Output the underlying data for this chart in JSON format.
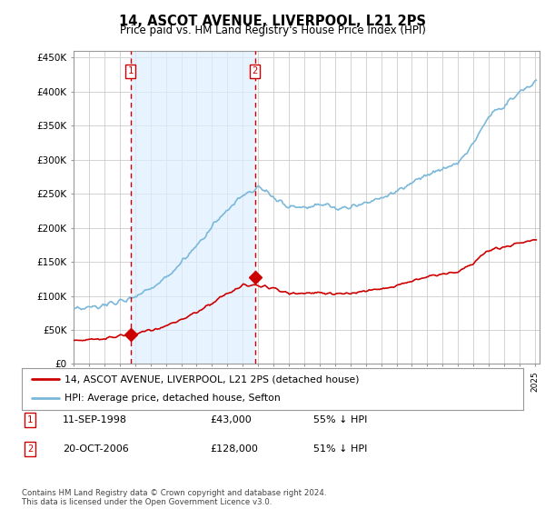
{
  "title": "14, ASCOT AVENUE, LIVERPOOL, L21 2PS",
  "subtitle": "Price paid vs. HM Land Registry's House Price Index (HPI)",
  "yticks": [
    0,
    50000,
    100000,
    150000,
    200000,
    250000,
    300000,
    350000,
    400000,
    450000
  ],
  "ytick_labels": [
    "£0",
    "£50K",
    "£100K",
    "£150K",
    "£200K",
    "£250K",
    "£300K",
    "£350K",
    "£400K",
    "£450K"
  ],
  "ylim": [
    0,
    460000
  ],
  "hpi_color": "#7ab8d9",
  "price_color": "#cc0000",
  "vline_color": "#cc0000",
  "shade_color": "#ddeeff",
  "grid_color": "#cccccc",
  "background_color": "#ffffff",
  "sale1_year": 1998.7,
  "sale1_price": 43000,
  "sale1_label": "1",
  "sale1_date": "11-SEP-1998",
  "sale1_pct": "55% ↓ HPI",
  "sale2_year": 2006.79,
  "sale2_price": 128000,
  "sale2_label": "2",
  "sale2_date": "20-OCT-2006",
  "sale2_pct": "51% ↓ HPI",
  "legend_line1": "14, ASCOT AVENUE, LIVERPOOL, L21 2PS (detached house)",
  "legend_line2": "HPI: Average price, detached house, Sefton",
  "footer": "Contains HM Land Registry data © Crown copyright and database right 2024.\nThis data is licensed under the Open Government Licence v3.0.",
  "xmin": 1995,
  "xmax": 2025.3
}
